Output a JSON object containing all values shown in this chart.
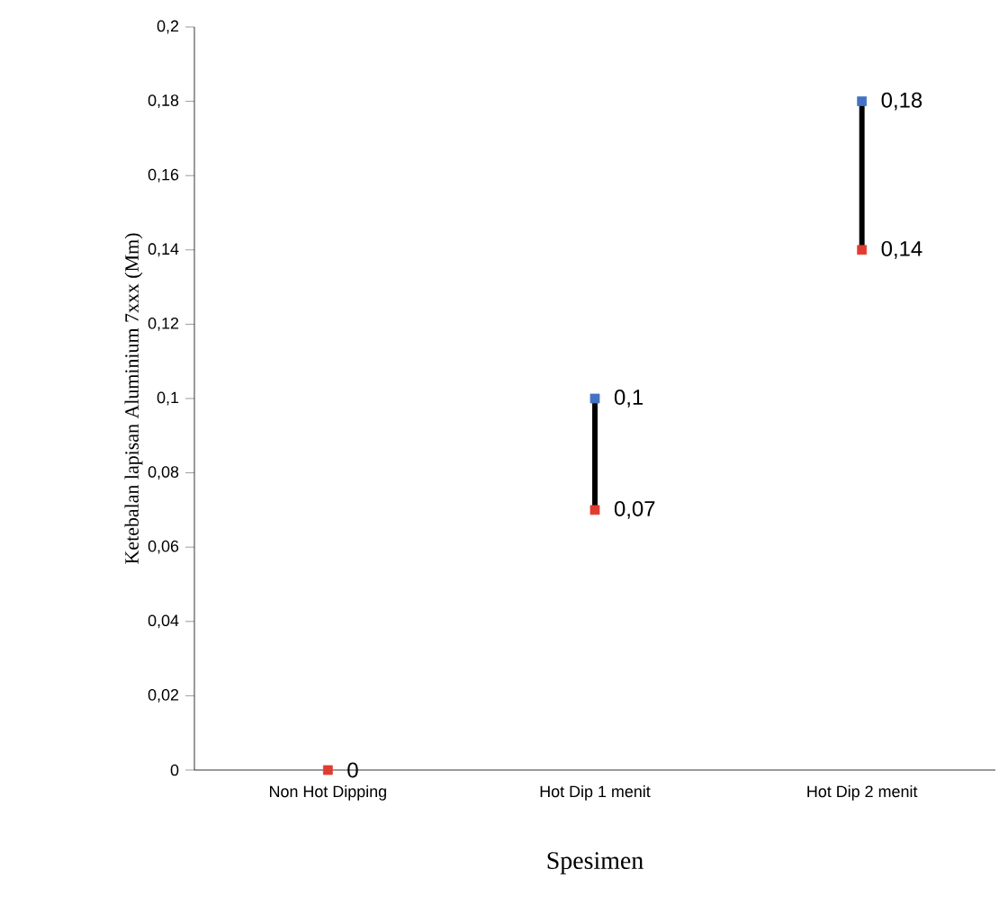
{
  "chart_data": {
    "type": "scatter",
    "xlabel": "Spesimen",
    "ylabel": "Ketebalan lapisan Aluminium 7xxx (Mm)",
    "categories": [
      "Non Hot Dipping",
      "Hot Dip 1 menit",
      "Hot Dip 2 menit"
    ],
    "series": [
      {
        "type": "bar",
        "color": "#000000",
        "base": [
          null,
          0.07,
          0.14
        ],
        "values": [
          null,
          0.03,
          0.04
        ]
      },
      {
        "color": "#4472c4",
        "values": [
          null,
          0.1,
          0.18
        ],
        "value_labels": [
          null,
          "0,1",
          "0,18"
        ]
      },
      {
        "color": "#e03c31",
        "values": [
          0,
          0.07,
          0.14
        ],
        "value_labels": [
          "0",
          "0,07",
          "0,14"
        ]
      }
    ],
    "ylim": [
      0,
      0.2
    ],
    "yticks": [
      0,
      {
        "value": 0.02,
        "label": "0,02"
      },
      {
        "value": 0.04,
        "label": "0,04"
      },
      {
        "value": 0.06,
        "label": "0,06"
      },
      {
        "value": 0.08,
        "label": "0,08"
      },
      {
        "value": 0.1,
        "label": "0,1"
      },
      {
        "value": 0.12,
        "label": "0,12"
      },
      {
        "value": 0.14,
        "label": "0,14"
      },
      {
        "value": 0.16,
        "label": "0,16"
      },
      {
        "value": 0.18,
        "label": "0,18"
      },
      {
        "value": 0.2,
        "label": "0,2"
      }
    ],
    "grid": false,
    "marker": "square"
  }
}
